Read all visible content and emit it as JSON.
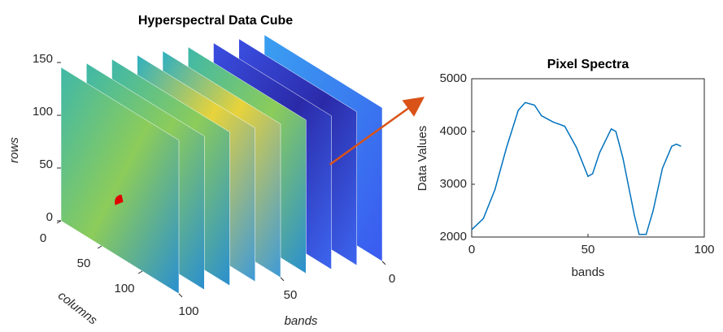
{
  "chart_data": [
    {
      "type": "cube3d",
      "title": "Hyperspectral Data Cube",
      "xlabel": "bands",
      "ylabel": "columns",
      "zlabel": "rows",
      "xlim": [
        0,
        100
      ],
      "xticks": [
        0,
        50,
        100
      ],
      "ylim": [
        0,
        145
      ],
      "yticks": [
        0,
        50,
        100
      ],
      "zlim": [
        0,
        150
      ],
      "zticks": [
        0,
        50,
        100,
        150
      ]
    },
    {
      "type": "line",
      "title": "Pixel Spectra",
      "xlabel": "bands",
      "ylabel": "Data Values",
      "x": [
        0,
        5,
        10,
        15,
        20,
        23,
        27,
        30,
        35,
        40,
        45,
        50,
        52,
        55,
        60,
        62,
        65,
        70,
        72,
        75,
        78,
        82,
        86,
        88,
        90
      ],
      "values": [
        2140,
        2350,
        2900,
        3700,
        4400,
        4550,
        4500,
        4300,
        4180,
        4100,
        3700,
        3150,
        3200,
        3600,
        4050,
        4000,
        3500,
        2400,
        2050,
        2050,
        2500,
        3300,
        3720,
        3760,
        3720
      ],
      "color": "#0072bd",
      "xlim": [
        0,
        100
      ],
      "xticks": [
        0,
        50,
        100
      ],
      "ylim": [
        2000,
        5000
      ],
      "yticks": [
        2000,
        3000,
        4000,
        5000
      ]
    }
  ]
}
